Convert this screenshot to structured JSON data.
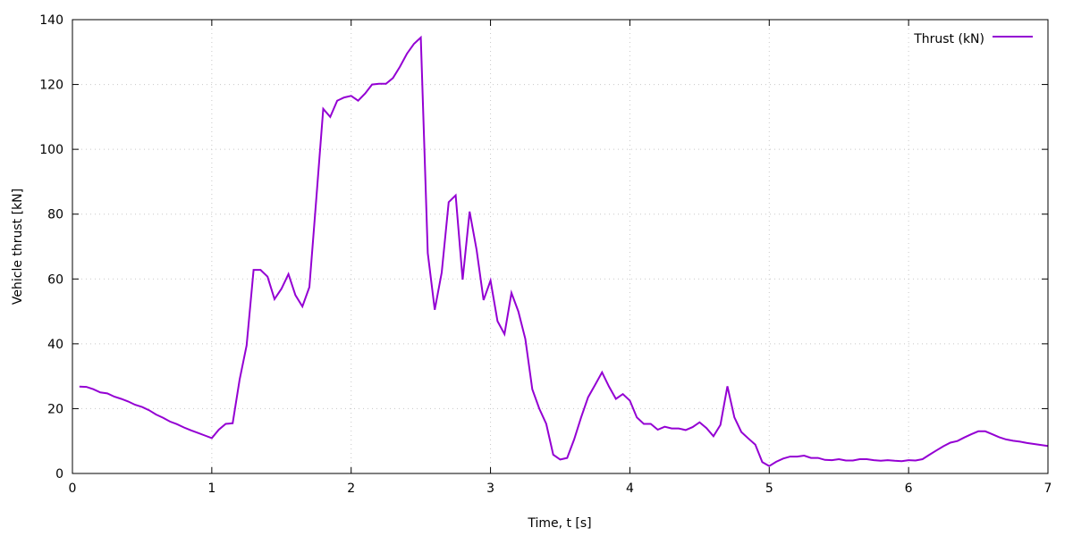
{
  "chart_data": {
    "type": "line",
    "title": "",
    "xlabel": "Time, t [s]",
    "ylabel": "Vehicle thrust [kN]",
    "xlim": [
      0,
      7
    ],
    "ylim": [
      0,
      140
    ],
    "xticks": [
      0,
      1,
      2,
      3,
      4,
      5,
      6,
      7
    ],
    "yticks": [
      0,
      20,
      40,
      60,
      80,
      100,
      120,
      140
    ],
    "grid": true,
    "legend_position": "top-right",
    "series": [
      {
        "name": "Thrust (kN)",
        "color": "#9400d3",
        "x": [
          0.05,
          0.1,
          0.15,
          0.2,
          0.25,
          0.3,
          0.35,
          0.4,
          0.45,
          0.5,
          0.55,
          0.6,
          0.65,
          0.7,
          0.75,
          0.8,
          0.85,
          0.9,
          0.95,
          1.0,
          1.05,
          1.1,
          1.15,
          1.2,
          1.25,
          1.3,
          1.35,
          1.4,
          1.45,
          1.5,
          1.55,
          1.6,
          1.65,
          1.7,
          1.75,
          1.8,
          1.85,
          1.9,
          1.95,
          2.0,
          2.05,
          2.1,
          2.15,
          2.2,
          2.25,
          2.3,
          2.35,
          2.4,
          2.45,
          2.5,
          2.55,
          2.6,
          2.65,
          2.7,
          2.75,
          2.8,
          2.85,
          2.9,
          2.95,
          3.0,
          3.05,
          3.1,
          3.15,
          3.2,
          3.25,
          3.3,
          3.35,
          3.4,
          3.45,
          3.5,
          3.55,
          3.6,
          3.65,
          3.7,
          3.75,
          3.8,
          3.85,
          3.9,
          3.95,
          4.0,
          4.05,
          4.1,
          4.15,
          4.2,
          4.25,
          4.3,
          4.35,
          4.4,
          4.45,
          4.5,
          4.55,
          4.6,
          4.65,
          4.7,
          4.75,
          4.8,
          4.85,
          4.9,
          4.95,
          5.0,
          5.05,
          5.1,
          5.15,
          5.2,
          5.25,
          5.3,
          5.35,
          5.4,
          5.45,
          5.5,
          5.55,
          5.6,
          5.65,
          5.7,
          5.75,
          5.8,
          5.85,
          5.9,
          5.95,
          6.0,
          6.05,
          6.1,
          6.15,
          6.2,
          6.25,
          6.3,
          6.35,
          6.4,
          6.45,
          6.5,
          6.55,
          6.6,
          6.65,
          6.7,
          6.75,
          6.8,
          6.85,
          6.9,
          6.95,
          7.0
        ],
        "y": [
          26.8,
          26.7,
          26,
          25,
          24.7,
          23.7,
          23,
          22.2,
          21.2,
          20.5,
          19.5,
          18.2,
          17.2,
          16,
          15.2,
          14.2,
          13.3,
          12.5,
          11.7,
          10.9,
          13.5,
          15.3,
          15.5,
          29,
          39.5,
          62.8,
          62.8,
          60.7,
          53.8,
          57,
          61.5,
          55,
          51.5,
          57.5,
          85,
          112.5,
          110,
          115,
          116,
          116.5,
          115,
          117.2,
          120,
          120.2,
          120.2,
          122,
          125.5,
          129.5,
          132.5,
          134.5,
          68,
          50.5,
          62,
          83.7,
          85.8,
          59.8,
          80.8,
          69,
          53.5,
          59.5,
          47,
          43,
          55.7,
          50,
          41.5,
          26,
          20,
          15.3,
          5.8,
          4.3,
          4.8,
          10.5,
          17.3,
          23.5,
          27.3,
          31.2,
          26.8,
          23,
          24.5,
          22.5,
          17.3,
          15.3,
          15.3,
          13.5,
          14.4,
          13.9,
          13.9,
          13.4,
          14.3,
          15.8,
          14,
          11.5,
          15,
          26.9,
          17.3,
          12.8,
          10.8,
          8.9,
          3.5,
          2.3,
          3.6,
          4.6,
          5.2,
          5.2,
          5.5,
          4.8,
          4.8,
          4.2,
          4.1,
          4.4,
          4,
          4,
          4.4,
          4.4,
          4.1,
          3.9,
          4.1,
          3.9,
          3.8,
          4.1,
          4,
          4.4,
          5.8,
          7.1,
          8.4,
          9.5,
          10,
          11.1,
          12.1,
          13,
          13,
          12.1,
          11.2,
          10.5,
          10.1,
          9.8,
          9.4,
          9.1,
          8.8,
          8.5
        ]
      }
    ]
  }
}
